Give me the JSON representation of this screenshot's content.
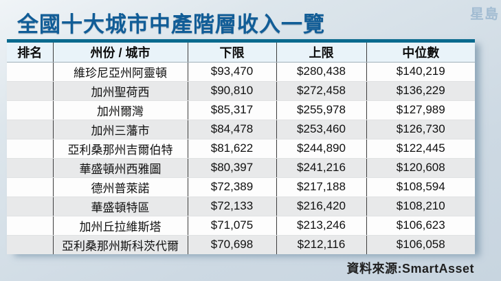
{
  "header": {
    "title": "全國十大城市中產階層收入一覽",
    "logo": "星島"
  },
  "table": {
    "headers": [
      "排名",
      "州份 / 城市",
      "下限",
      "上限",
      "中位數"
    ],
    "rows": [
      {
        "rank": "",
        "city": "維珍尼亞州阿靈頓",
        "lower": "$93,470",
        "upper": "$280,438",
        "median": "$140,219"
      },
      {
        "rank": "",
        "city": "加州聖荷西",
        "lower": "$90,810",
        "upper": "$272,458",
        "median": "$136,229"
      },
      {
        "rank": "",
        "city": "加州爾灣",
        "lower": "$85,317",
        "upper": "$255,978",
        "median": "$127,989"
      },
      {
        "rank": "",
        "city": "加州三藩市",
        "lower": "$84,478",
        "upper": "$253,460",
        "median": "$126,730"
      },
      {
        "rank": "",
        "city": "亞利桑那州吉爾伯特",
        "lower": "$81,622",
        "upper": "$244,890",
        "median": "$122,445"
      },
      {
        "rank": "",
        "city": "華盛頓州西雅圖",
        "lower": "$80,397",
        "upper": "$241,216",
        "median": "$120,608"
      },
      {
        "rank": "",
        "city": "德州普萊諾",
        "lower": "$72,389",
        "upper": "$217,188",
        "median": "$108,594"
      },
      {
        "rank": "",
        "city": "華盛頓特區",
        "lower": "$72,133",
        "upper": "$216,420",
        "median": "$108,210"
      },
      {
        "rank": "",
        "city": "加州丘拉維斯塔",
        "lower": "$71,075",
        "upper": "$213,246",
        "median": "$106,623"
      },
      {
        "rank": "",
        "city": "亞利桑那州斯科茨代爾",
        "lower": "$70,698",
        "upper": "$212,116",
        "median": "$106,058"
      }
    ]
  },
  "footer": {
    "source": "資料來源:SmartAsset"
  },
  "colors": {
    "title": "#115d97",
    "table_top_bar": "#0a6a8e",
    "header_row_bg": "#e9f3f9",
    "alt_row_bg": "#e8e9ea",
    "logo": "#a2bcd2"
  },
  "chart_data": {
    "type": "table",
    "title": "全國十大城市中產階層收入一覽",
    "columns": [
      "排名",
      "州份 / 城市",
      "下限",
      "上限",
      "中位數"
    ],
    "rows": [
      [
        "",
        "維珍尼亞州阿靈頓",
        93470,
        280438,
        140219
      ],
      [
        "",
        "加州聖荷西",
        90810,
        272458,
        136229
      ],
      [
        "",
        "加州爾灣",
        85317,
        255978,
        127989
      ],
      [
        "",
        "加州三藩市",
        84478,
        253460,
        126730
      ],
      [
        "",
        "亞利桑那州吉爾伯特",
        81622,
        244890,
        122445
      ],
      [
        "",
        "華盛頓州西雅圖",
        80397,
        241216,
        120608
      ],
      [
        "",
        "德州普萊諾",
        72389,
        217188,
        108594
      ],
      [
        "",
        "華盛頓特區",
        72133,
        216420,
        108210
      ],
      [
        "",
        "加州丘拉維斯塔",
        71075,
        213246,
        106623
      ],
      [
        "",
        "亞利桑那州斯科茨代爾",
        70698,
        212116,
        106058
      ]
    ],
    "source": "資料來源:SmartAsset"
  }
}
